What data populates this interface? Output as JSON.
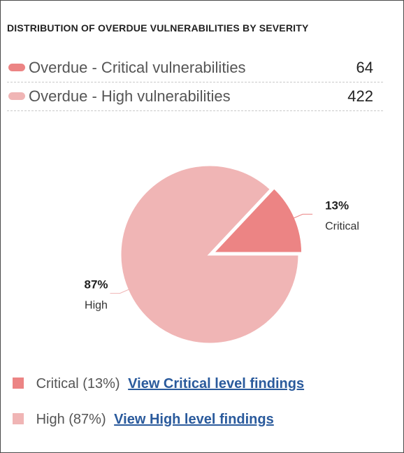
{
  "header": {
    "title": "DISTRIBUTION OF OVERDUE VULNERABILITIES BY SEVERITY"
  },
  "summary": [
    {
      "label": "Overdue - Critical vulnerabilities",
      "value": "64",
      "color": "#ec8484"
    },
    {
      "label": "Overdue - High vulnerabilities",
      "value": "422",
      "color": "#f0b5b5"
    }
  ],
  "chart_data": {
    "type": "pie",
    "categories": [
      "Critical",
      "High"
    ],
    "values": [
      13,
      87
    ],
    "data_labels": [
      "13%",
      "87%"
    ],
    "colors": [
      "#ec8484",
      "#f0b5b5"
    ],
    "start_angle_deg": 0,
    "exploded": "Critical"
  },
  "legend": [
    {
      "text": "Critical (13%)",
      "link": "View Critical level findings",
      "color": "#ec8484"
    },
    {
      "text": "High (87%)",
      "link": "View High level findings",
      "color": "#f0b5b5"
    }
  ]
}
